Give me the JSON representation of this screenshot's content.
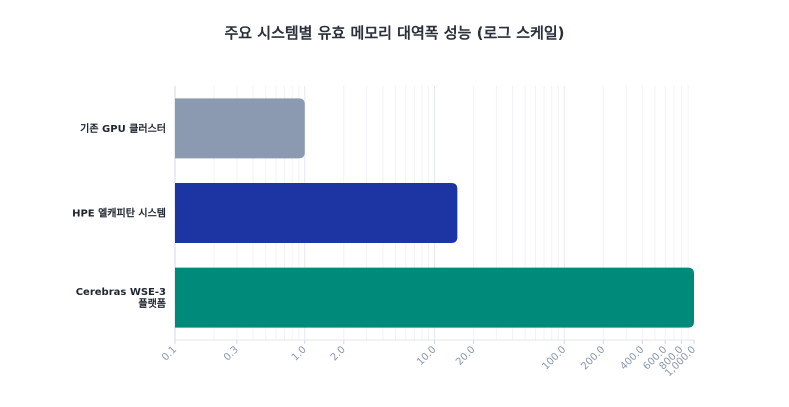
{
  "chart_data": {
    "type": "bar",
    "orientation": "horizontal",
    "title": "주요 시스템별 유효 메모리 대역폭 성능 (로그 스케일)",
    "xscale": "log",
    "xlim": [
      0.1,
      1000
    ],
    "grid": true,
    "categories": [
      [
        "기존 GPU 클러스터"
      ],
      [
        "HPE 엘캐피탄 시스템"
      ],
      [
        "Cerebras WSE-3",
        "플랫폼"
      ]
    ],
    "values": [
      1.0,
      15.0,
      1000.0
    ],
    "colors": [
      "#8b9ab0",
      "#1c35a3",
      "#008a7a"
    ],
    "xticks": [
      0.1,
      0.3,
      1.0,
      2.0,
      10.0,
      20.0,
      100.0,
      200.0,
      400.0,
      600.0,
      800.0,
      1000.0
    ],
    "xtick_labels": [
      "0.1",
      "0.3",
      "1.0",
      "2.0",
      "10.0",
      "20.0",
      "100.0",
      "200.0",
      "400.0",
      "600.0",
      "800.0",
      "1,000.0"
    ]
  }
}
